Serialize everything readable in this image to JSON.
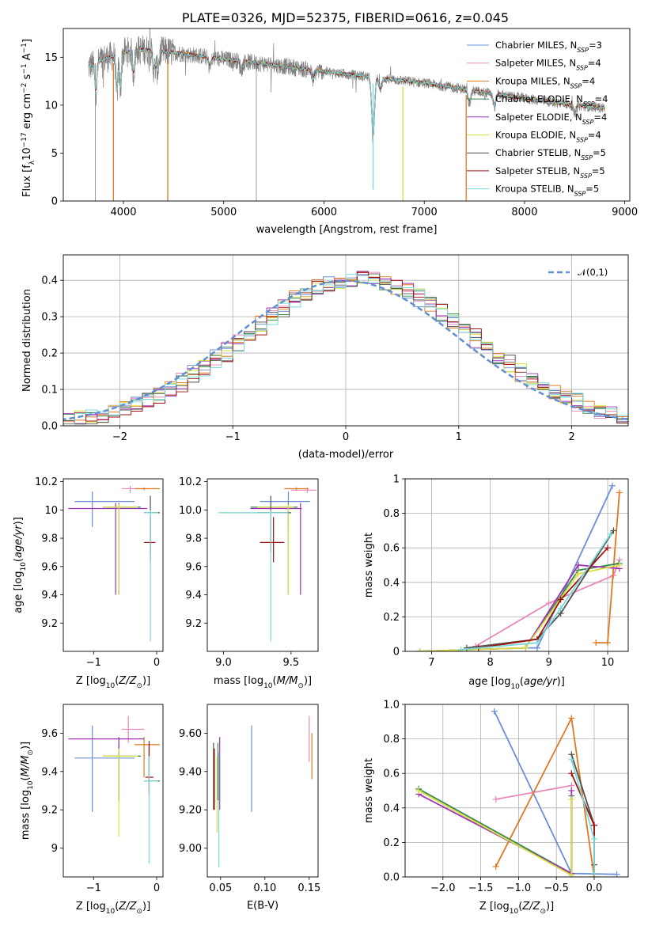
{
  "figure": {
    "title": "PLATE=0326, MJD=52375, FIBERID=0616, z=0.045"
  },
  "model_labels": [
    "Chabrier MILES, N_SSP=3",
    "Salpeter MILES, N_SSP=4",
    "Kroupa MILES, N_SSP=4",
    "Chabrier ELODIE, N_SSP=4",
    "Salpeter ELODIE, N_SSP=4",
    "Kroupa ELODIE, N_SSP=4",
    "Chabrier STELIB, N_SSP=5",
    "Salpeter STELIB, N_SSP=5",
    "Kroupa STELIB, N_SSP=5"
  ],
  "model_colors": [
    "#6a8fd8",
    "#e888b8",
    "#e0781e",
    "#3a8a50",
    "#a030b8",
    "#d8e040",
    "#505050",
    "#a01010",
    "#7adada"
  ],
  "hist_legend": "𝒩(0,1)",
  "chart_data": [
    {
      "id": "spectrum",
      "type": "line",
      "title": "PLATE=0326, MJD=52375, FIBERID=0616, z=0.045",
      "xlabel": "wavelength [Angstrom, rest frame]",
      "ylabel": "Flux [f_λ 10^-17 erg cm^-2 s^-1 A^-1]",
      "xlim": [
        3400,
        9050
      ],
      "ylim": [
        0,
        18
      ],
      "xticks": [
        4000,
        5000,
        6000,
        7000,
        8000,
        9000
      ],
      "yticks": [
        0,
        5,
        10,
        15
      ],
      "grid": false,
      "legend": "right",
      "observed_color": "#808080",
      "observed_range": [
        3650,
        8800
      ],
      "model_range": [
        3650,
        8800
      ],
      "envelope": {
        "x": [
          3650,
          3800,
          4000,
          4200,
          4500,
          5000,
          5500,
          6000,
          6500,
          7000,
          7500,
          8000,
          8500,
          8800
        ],
        "y": [
          14.0,
          14.8,
          15.5,
          15.8,
          15.5,
          14.8,
          14.2,
          13.5,
          12.9,
          12.3,
          11.5,
          10.7,
          10.0,
          9.7
        ]
      },
      "absorption_lines": [
        {
          "x": 3725,
          "depth": 0.35
        },
        {
          "x": 3934,
          "depth": 0.45
        },
        {
          "x": 3969,
          "depth": 0.4
        },
        {
          "x": 4101,
          "depth": 0.25
        },
        {
          "x": 4305,
          "depth": 0.2
        },
        {
          "x": 4340,
          "depth": 0.2
        },
        {
          "x": 4861,
          "depth": 0.12
        },
        {
          "x": 5175,
          "depth": 0.1
        },
        {
          "x": 5893,
          "depth": 0.12
        },
        {
          "x": 6490,
          "depth": 0.85
        },
        {
          "x": 6563,
          "depth": 0.15
        },
        {
          "x": 7450,
          "depth": 0.2
        },
        {
          "x": 7700,
          "depth": 0.2
        },
        {
          "x": 8500,
          "depth": 0.15
        }
      ],
      "model_spikes": [
        {
          "x": 3900,
          "to": 0,
          "series": 2
        },
        {
          "x": 4442,
          "to": 0,
          "series": 2
        },
        {
          "x": 6787,
          "to": 0,
          "series": 5
        },
        {
          "x": 7418,
          "to": 0,
          "series": 2
        },
        {
          "x": 6490,
          "to": 1.2,
          "series": 8
        }
      ],
      "observed_spikes": [
        {
          "x": 5325,
          "to": 0
        },
        {
          "x": 3720,
          "to": 0
        }
      ]
    },
    {
      "id": "residuals",
      "type": "histogram",
      "xlabel": "(data-model)/error",
      "ylabel": "Normed distribution",
      "xlim": [
        -2.5,
        2.5
      ],
      "ylim": [
        0,
        0.47
      ],
      "xticks": [
        -2,
        -1,
        0,
        1,
        2
      ],
      "yticks": [
        0.0,
        0.1,
        0.2,
        0.3,
        0.4
      ],
      "grid": true,
      "legend": "top-right",
      "bin_width": 0.1,
      "reference_curve": {
        "name": "𝒩(0,1)",
        "mean": 0,
        "sigma": 1,
        "color": "#6090d0",
        "dashed": true
      }
    },
    {
      "id": "z_age",
      "type": "scatter",
      "xlabel": "Z [log10(Z/Z⊙)]",
      "ylabel": "age [log10(age/yr)]",
      "xlim": [
        -1.48,
        0.1
      ],
      "ylim": [
        9.0,
        10.22
      ],
      "xticks": [
        -1,
        0
      ],
      "yticks": [
        9.2,
        9.4,
        9.6,
        9.8,
        10.0,
        10.2
      ],
      "grid": false,
      "errorbars": [
        {
          "series": 0,
          "x": -1.02,
          "xlo": -1.3,
          "xhi": -0.35,
          "y": 10.06,
          "ylo": 9.88,
          "yhi": 10.13
        },
        {
          "series": 1,
          "x": -0.42,
          "xlo": -0.55,
          "xhi": -0.15,
          "y": 10.15,
          "ylo": 10.12,
          "yhi": 10.17
        },
        {
          "series": 2,
          "x": -0.2,
          "xlo": -0.35,
          "xhi": 0.05,
          "y": 10.15,
          "ylo": 10.14,
          "yhi": 10.16
        },
        {
          "series": 3,
          "x": -0.6,
          "xlo": -0.85,
          "xhi": -0.25,
          "y": 10.02,
          "ylo": 9.4,
          "yhi": 10.05
        },
        {
          "series": 4,
          "x": -0.65,
          "xlo": -1.4,
          "xhi": -0.15,
          "y": 10.01,
          "ylo": 9.4,
          "yhi": 10.05
        },
        {
          "series": 5,
          "x": -0.6,
          "xlo": -0.85,
          "xhi": -0.3,
          "y": 10.02,
          "ylo": 9.4,
          "yhi": 10.04
        },
        {
          "series": 6,
          "x": -0.1,
          "xlo": -0.2,
          "xhi": 0.05,
          "y": 9.98,
          "ylo": 9.7,
          "yhi": 10.1
        },
        {
          "series": 7,
          "x": -0.1,
          "xlo": -0.2,
          "xhi": -0.02,
          "y": 9.77,
          "ylo": 9.63,
          "yhi": 9.95
        },
        {
          "series": 8,
          "x": -0.1,
          "xlo": -0.2,
          "xhi": 0.02,
          "y": 9.98,
          "ylo": 9.07,
          "yhi": 10.0
        }
      ]
    },
    {
      "id": "mass_age",
      "type": "scatter",
      "xlabel": "mass [log10(M/M⊙)]",
      "ylabel": "",
      "xlim": [
        8.88,
        9.7
      ],
      "ylim": [
        9.0,
        10.22
      ],
      "xticks": [
        9.0,
        9.5
      ],
      "yticks": [
        9.2,
        9.4,
        9.6,
        9.8,
        10.0,
        10.2
      ],
      "grid": false,
      "errorbars": [
        {
          "series": 0,
          "x": 9.48,
          "xlo": 9.27,
          "xhi": 9.64,
          "y": 10.06,
          "ylo": 9.88,
          "yhi": 10.13
        },
        {
          "series": 1,
          "x": 9.62,
          "xlo": 9.5,
          "xhi": 9.69,
          "y": 10.14,
          "ylo": 10.12,
          "yhi": 10.16
        },
        {
          "series": 2,
          "x": 9.54,
          "xlo": 9.45,
          "xhi": 9.63,
          "y": 10.15,
          "ylo": 10.14,
          "yhi": 10.16
        },
        {
          "series": 3,
          "x": 9.48,
          "xlo": 9.2,
          "xhi": 9.55,
          "y": 10.02,
          "ylo": 9.4,
          "yhi": 10.05
        },
        {
          "series": 4,
          "x": 9.57,
          "xlo": 9.2,
          "xhi": 9.58,
          "y": 10.01,
          "ylo": 9.4,
          "yhi": 10.05
        },
        {
          "series": 5,
          "x": 9.48,
          "xlo": 9.25,
          "xhi": 9.52,
          "y": 10.02,
          "ylo": 9.4,
          "yhi": 10.04
        },
        {
          "series": 6,
          "x": 9.35,
          "xlo": 9.25,
          "xhi": 9.5,
          "y": 9.98,
          "ylo": 9.7,
          "yhi": 10.1
        },
        {
          "series": 7,
          "x": 9.37,
          "xlo": 9.27,
          "xhi": 9.45,
          "y": 9.77,
          "ylo": 9.63,
          "yhi": 9.95
        },
        {
          "series": 8,
          "x": 9.35,
          "xlo": 8.96,
          "xhi": 9.48,
          "y": 9.98,
          "ylo": 9.07,
          "yhi": 10.0
        }
      ]
    },
    {
      "id": "age_weight",
      "type": "line",
      "xlabel": "age [log10(age/yr)]",
      "ylabel": "mass weight",
      "xlim": [
        6.55,
        10.35
      ],
      "ylim": [
        0,
        1.0
      ],
      "xticks": [
        7,
        8,
        9,
        10
      ],
      "yticks": [
        0.0,
        0.2,
        0.4,
        0.6,
        0.8,
        1.0
      ],
      "grid": true,
      "series": [
        {
          "series": 0,
          "x": [
            8.6,
            8.8,
            10.08
          ],
          "y": [
            0.02,
            0.02,
            0.96
          ]
        },
        {
          "series": 1,
          "x": [
            7.75,
            9.0,
            10.1,
            10.2
          ],
          "y": [
            0.03,
            0.28,
            0.44,
            0.53
          ]
        },
        {
          "series": 2,
          "x": [
            9.8,
            10.0,
            10.2
          ],
          "y": [
            0.05,
            0.05,
            0.92
          ]
        },
        {
          "series": 3,
          "x": [
            6.8,
            8.6,
            9.5,
            10.2
          ],
          "y": [
            0.0,
            0.02,
            0.47,
            0.51
          ]
        },
        {
          "series": 4,
          "x": [
            6.8,
            8.6,
            9.5,
            10.2
          ],
          "y": [
            0.0,
            0.02,
            0.5,
            0.48
          ]
        },
        {
          "series": 5,
          "x": [
            6.8,
            8.6,
            9.5,
            10.2
          ],
          "y": [
            0.0,
            0.02,
            0.45,
            0.5
          ]
        },
        {
          "series": 6,
          "x": [
            7.6,
            8.8,
            9.2,
            10.1
          ],
          "y": [
            0.02,
            0.07,
            0.22,
            0.7
          ]
        },
        {
          "series": 7,
          "x": [
            7.8,
            8.8,
            9.2,
            10.0
          ],
          "y": [
            0.02,
            0.07,
            0.3,
            0.6
          ]
        },
        {
          "series": 8,
          "x": [
            7.5,
            8.8,
            9.2,
            10.05
          ],
          "y": [
            0.01,
            0.05,
            0.25,
            0.68
          ]
        }
      ]
    },
    {
      "id": "z_mass",
      "type": "scatter",
      "xlabel": "Z [log10(Z/Z⊙)]",
      "ylabel": "mass [log10(M/M⊙)]",
      "xlim": [
        -1.48,
        0.1
      ],
      "ylim": [
        8.85,
        9.75
      ],
      "xticks": [
        -1,
        0
      ],
      "yticks": [
        9.0,
        9.2,
        9.4,
        9.6
      ],
      "grid": false,
      "errorbars": [
        {
          "series": 0,
          "x": -1.02,
          "xlo": -1.3,
          "xhi": -0.35,
          "y": 9.47,
          "ylo": 9.19,
          "yhi": 9.64
        },
        {
          "series": 1,
          "x": -0.45,
          "xlo": -0.55,
          "xhi": -0.2,
          "y": 9.62,
          "ylo": 9.55,
          "yhi": 9.69
        },
        {
          "series": 2,
          "x": -0.2,
          "xlo": -0.35,
          "xhi": 0.05,
          "y": 9.54,
          "ylo": 9.37,
          "yhi": 9.58
        },
        {
          "series": 3,
          "x": -0.6,
          "xlo": -0.85,
          "xhi": -0.25,
          "y": 9.48,
          "ylo": 9.25,
          "yhi": 9.55
        },
        {
          "series": 4,
          "x": -0.6,
          "xlo": -1.4,
          "xhi": -0.2,
          "y": 9.57,
          "ylo": 9.25,
          "yhi": 9.58
        },
        {
          "series": 5,
          "x": -0.6,
          "xlo": -0.85,
          "xhi": -0.3,
          "y": 9.48,
          "ylo": 9.06,
          "yhi": 9.52
        },
        {
          "series": 6,
          "x": -0.12,
          "xlo": -0.2,
          "xhi": 0.05,
          "y": 9.35,
          "ylo": 9.3,
          "yhi": 9.56
        },
        {
          "series": 7,
          "x": -0.12,
          "xlo": -0.18,
          "xhi": -0.05,
          "y": 9.37,
          "ylo": 9.27,
          "yhi": 9.55
        },
        {
          "series": 8,
          "x": -0.12,
          "xlo": -0.2,
          "xhi": 0.02,
          "y": 9.35,
          "ylo": 8.92,
          "yhi": 9.48
        }
      ]
    },
    {
      "id": "ebv_mass",
      "type": "scatter",
      "xlabel": "E(B-V)",
      "ylabel": "",
      "xlim": [
        0.035,
        0.16
      ],
      "ylim": [
        8.85,
        9.75
      ],
      "xticks": [
        0.05,
        0.1,
        0.15
      ],
      "yticks": [
        9.0,
        9.2,
        9.4,
        9.6
      ],
      "grid": false,
      "errorbars": [
        {
          "series": 0,
          "x": 0.085,
          "y": 9.47,
          "ylo": 9.19,
          "yhi": 9.64
        },
        {
          "series": 1,
          "x": 0.15,
          "y": 9.6,
          "ylo": 9.45,
          "yhi": 9.69
        },
        {
          "series": 2,
          "x": 0.153,
          "y": 9.48,
          "ylo": 9.36,
          "yhi": 9.6
        },
        {
          "series": 3,
          "x": 0.047,
          "y": 9.48,
          "ylo": 9.25,
          "yhi": 9.55
        },
        {
          "series": 4,
          "x": 0.049,
          "y": 9.4,
          "ylo": 9.2,
          "yhi": 9.58
        },
        {
          "series": 5,
          "x": 0.046,
          "y": 9.35,
          "ylo": 9.08,
          "yhi": 9.48
        },
        {
          "series": 6,
          "x": 0.042,
          "y": 9.4,
          "ylo": 9.2,
          "yhi": 9.55
        },
        {
          "series": 7,
          "x": 0.043,
          "y": 9.38,
          "ylo": 9.2,
          "yhi": 9.52
        },
        {
          "series": 8,
          "x": 0.048,
          "y": 9.2,
          "ylo": 8.9,
          "yhi": 9.5
        }
      ]
    },
    {
      "id": "z_weight",
      "type": "line",
      "xlabel": "Z [log10(Z/Z⊙)]",
      "ylabel": "mass weight",
      "xlim": [
        -2.5,
        0.45
      ],
      "ylim": [
        0,
        1.0
      ],
      "xticks": [
        -2.0,
        -1.5,
        -1.0,
        -0.5,
        0.0
      ],
      "yticks": [
        0.0,
        0.2,
        0.4,
        0.6,
        0.8,
        1.0
      ],
      "grid": true,
      "series": [
        {
          "series": 0,
          "x": [
            -1.32,
            -0.3,
            0.3
          ],
          "y": [
            0.96,
            0.02,
            0.015
          ]
        },
        {
          "series": 1,
          "x": [
            -1.3,
            -0.3
          ],
          "y": [
            0.45,
            0.53
          ]
        },
        {
          "series": 2,
          "x": [
            -1.3,
            -0.3,
            0.0
          ],
          "y": [
            0.06,
            0.92,
            0.0
          ]
        },
        {
          "series": 3,
          "x": [
            -2.32,
            -0.3,
            -0.3
          ],
          "y": [
            0.51,
            0.02,
            0.47
          ]
        },
        {
          "series": 4,
          "x": [
            -2.32,
            -0.3,
            -0.3
          ],
          "y": [
            0.48,
            0.02,
            0.5
          ]
        },
        {
          "series": 5,
          "x": [
            -2.32,
            -0.3,
            -0.3
          ],
          "y": [
            0.5,
            0.01,
            0.45
          ]
        },
        {
          "series": 6,
          "x": [
            -0.3,
            0.0,
            0.0
          ],
          "y": [
            0.71,
            0.3,
            0.07
          ]
        },
        {
          "series": 7,
          "x": [
            -0.3,
            0.0,
            0.0
          ],
          "y": [
            0.6,
            0.3,
            0.02
          ]
        },
        {
          "series": 8,
          "x": [
            -0.3,
            0.0,
            0.0
          ],
          "y": [
            0.68,
            0.22,
            0.02
          ]
        }
      ]
    }
  ]
}
